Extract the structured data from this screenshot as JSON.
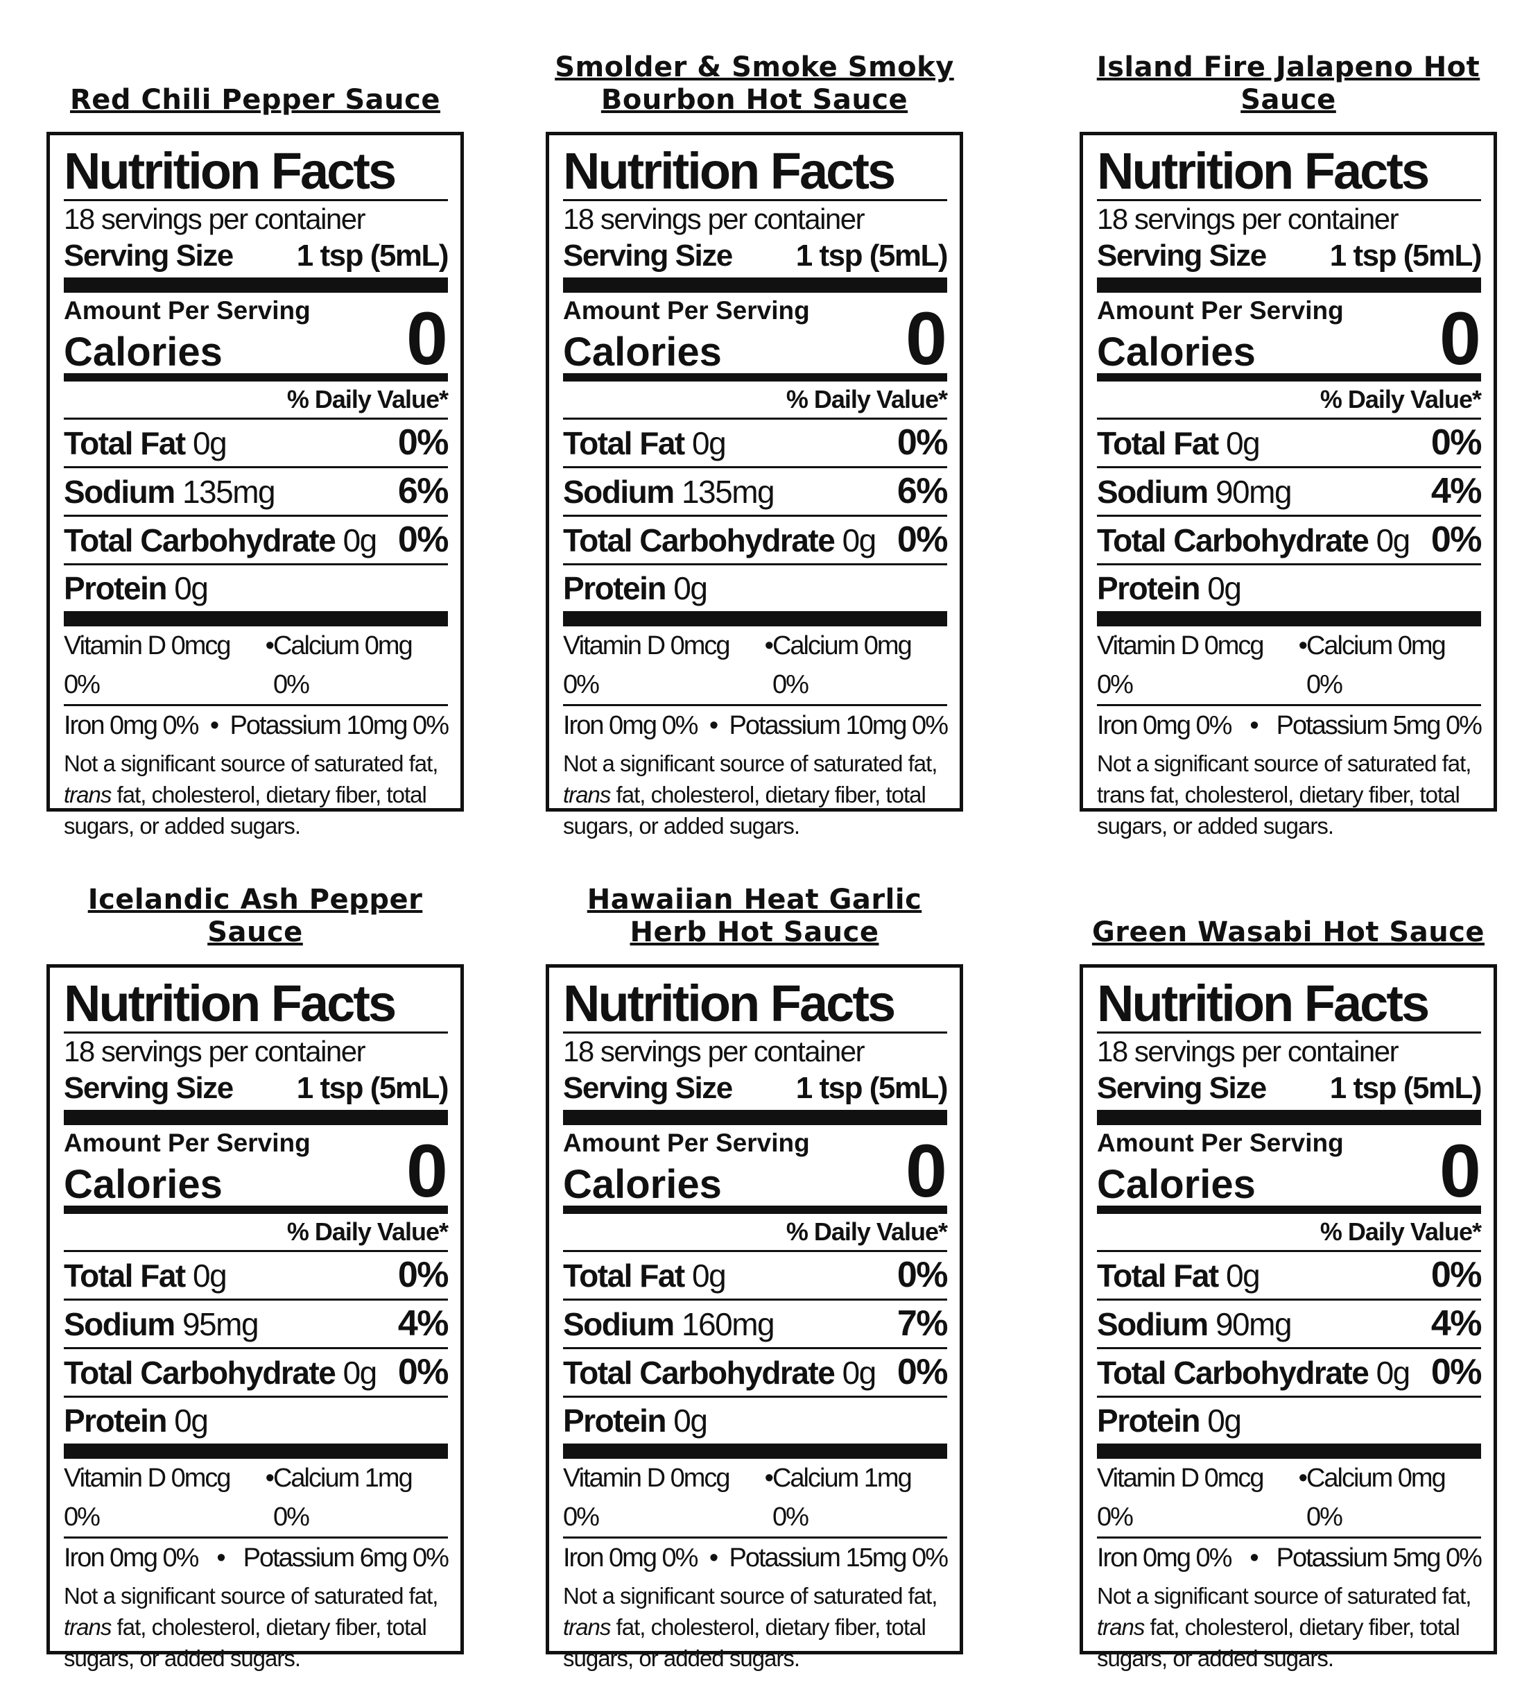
{
  "labels": [
    {
      "title": "Red Chili Pepper Sauce",
      "heading": "Nutrition Facts",
      "servings": "18 servings per container",
      "serving_size_label": "Serving Size",
      "serving_size": "1 tsp (5mL)",
      "amount_per_serving": "Amount Per Serving",
      "calories_label": "Calories",
      "calories": "0",
      "daily_value": "% Daily Value*",
      "nutrients": [
        {
          "name": "Total Fat",
          "amount": "0g",
          "dv": "0%"
        },
        {
          "name": "Sodium",
          "amount": "135mg",
          "dv": "6%"
        },
        {
          "name": "Total Carbohydrate",
          "amount": "0g",
          "dv": "0%"
        }
      ],
      "protein": {
        "name": "Protein",
        "amount": "0g"
      },
      "vitamins": [
        [
          "Vitamin D 0mcg 0%",
          "Calcium 0mg 0%"
        ],
        [
          "Iron 0mg 0%",
          "Potassium 10mg 0%"
        ]
      ],
      "footnote": [
        "Not a significant source of saturated fat, ",
        "trans",
        " fat, cholesterol, dietary fiber, total sugars, or added sugars."
      ],
      "trans_italic": true
    },
    {
      "title": "Smolder & Smoke Smoky Bourbon Hot Sauce",
      "heading": "Nutrition Facts",
      "servings": "18 servings per container",
      "serving_size_label": "Serving Size",
      "serving_size": "1 tsp (5mL)",
      "amount_per_serving": "Amount Per Serving",
      "calories_label": "Calories",
      "calories": "0",
      "daily_value": "% Daily Value*",
      "nutrients": [
        {
          "name": "Total Fat",
          "amount": "0g",
          "dv": "0%"
        },
        {
          "name": "Sodium",
          "amount": "135mg",
          "dv": "6%"
        },
        {
          "name": "Total Carbohydrate",
          "amount": "0g",
          "dv": "0%"
        }
      ],
      "protein": {
        "name": "Protein",
        "amount": "0g"
      },
      "vitamins": [
        [
          "Vitamin D 0mcg 0%",
          "Calcium 0mg 0%"
        ],
        [
          "Iron 0mg 0%",
          "Potassium 10mg 0%"
        ]
      ],
      "footnote": [
        "Not a significant source of saturated fat, ",
        "trans",
        " fat, cholesterol, dietary fiber, total sugars, or added sugars."
      ],
      "trans_italic": true
    },
    {
      "title": "Island Fire Jalapeno Hot Sauce",
      "heading": "Nutrition Facts",
      "servings": "18 servings per container",
      "serving_size_label": "Serving Size",
      "serving_size": "1 tsp (5mL)",
      "amount_per_serving": "Amount Per Serving",
      "calories_label": "Calories",
      "calories": "0",
      "daily_value": "% Daily Value*",
      "nutrients": [
        {
          "name": "Total Fat",
          "amount": "0g",
          "dv": "0%"
        },
        {
          "name": "Sodium",
          "amount": "90mg",
          "dv": "4%"
        },
        {
          "name": "Total Carbohydrate",
          "amount": "0g",
          "dv": "0%"
        }
      ],
      "protein": {
        "name": "Protein",
        "amount": "0g"
      },
      "vitamins": [
        [
          "Vitamin D 0mcg 0%",
          "Calcium 0mg 0%"
        ],
        [
          "Iron 0mg 0%",
          "Potassium 5mg 0%"
        ]
      ],
      "footnote": [
        "Not a significant source of saturated fat, ",
        "trans",
        " fat, cholesterol, dietary fiber, total sugars, or added sugars."
      ],
      "trans_italic": false
    },
    {
      "title": "Icelandic Ash Pepper Sauce",
      "heading": "Nutrition Facts",
      "servings": "18 servings per container",
      "serving_size_label": "Serving Size",
      "serving_size": "1 tsp (5mL)",
      "amount_per_serving": "Amount Per Serving",
      "calories_label": "Calories",
      "calories": "0",
      "daily_value": "% Daily Value*",
      "nutrients": [
        {
          "name": "Total Fat",
          "amount": "0g",
          "dv": "0%"
        },
        {
          "name": "Sodium",
          "amount": "95mg",
          "dv": "4%"
        },
        {
          "name": "Total Carbohydrate",
          "amount": "0g",
          "dv": "0%"
        }
      ],
      "protein": {
        "name": "Protein",
        "amount": "0g"
      },
      "vitamins": [
        [
          "Vitamin D 0mcg 0%",
          "Calcium 1mg 0%"
        ],
        [
          "Iron 0mg 0%",
          "Potassium 6mg 0%"
        ]
      ],
      "footnote": [
        "Not a significant source of saturated fat, ",
        "trans",
        " fat, cholesterol, dietary fiber, total sugars, or added sugars."
      ],
      "trans_italic": true
    },
    {
      "title": "Hawaiian Heat Garlic Herb Hot Sauce",
      "heading": "Nutrition Facts",
      "servings": "18 servings per container",
      "serving_size_label": "Serving Size",
      "serving_size": "1 tsp (5mL)",
      "amount_per_serving": "Amount Per Serving",
      "calories_label": "Calories",
      "calories": "0",
      "daily_value": "% Daily Value*",
      "nutrients": [
        {
          "name": "Total Fat",
          "amount": "0g",
          "dv": "0%"
        },
        {
          "name": "Sodium",
          "amount": "160mg",
          "dv": "7%"
        },
        {
          "name": "Total Carbohydrate",
          "amount": "0g",
          "dv": "0%"
        }
      ],
      "protein": {
        "name": "Protein",
        "amount": "0g"
      },
      "vitamins": [
        [
          "Vitamin D 0mcg 0%",
          "Calcium 1mg 0%"
        ],
        [
          "Iron 0mg 0%",
          "Potassium 15mg 0%"
        ]
      ],
      "footnote": [
        "Not a significant source of saturated fat, ",
        "trans",
        " fat, cholesterol, dietary fiber, total sugars, or added sugars."
      ],
      "trans_italic": true
    },
    {
      "title": "Green Wasabi Hot Sauce",
      "heading": "Nutrition Facts",
      "servings": "18 servings per container",
      "serving_size_label": "Serving Size",
      "serving_size": "1 tsp (5mL)",
      "amount_per_serving": "Amount Per Serving",
      "calories_label": "Calories",
      "calories": "0",
      "daily_value": "% Daily Value*",
      "nutrients": [
        {
          "name": "Total Fat",
          "amount": "0g",
          "dv": "0%"
        },
        {
          "name": "Sodium",
          "amount": "90mg",
          "dv": "4%"
        },
        {
          "name": "Total Carbohydrate",
          "amount": "0g",
          "dv": "0%"
        }
      ],
      "protein": {
        "name": "Protein",
        "amount": "0g"
      },
      "vitamins": [
        [
          "Vitamin D 0mcg 0%",
          "Calcium 0mg 0%"
        ],
        [
          "Iron 0mg 0%",
          "Potassium 5mg 0%"
        ]
      ],
      "footnote": [
        "Not a significant source of saturated fat, ",
        "trans",
        " fat, cholesterol, dietary fiber, total sugars, or added sugars."
      ],
      "trans_italic": true
    }
  ]
}
